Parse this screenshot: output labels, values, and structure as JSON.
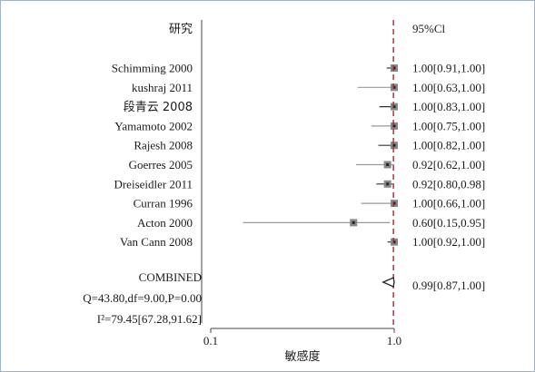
{
  "chart_data": {
    "type": "forest",
    "study_header": "研究",
    "ci_header": "95%Cl",
    "xlabel": "敏感度",
    "x_scale": "log",
    "xlim": [
      0.1,
      1.0
    ],
    "x_ticks": [
      "0.1",
      "1.0"
    ],
    "reference_line": 0.99,
    "studies": [
      {
        "name": "Schimming 2000",
        "est": 1.0,
        "lo": 0.91,
        "hi": 1.0,
        "label": "1.00[0.91,1.00]"
      },
      {
        "name": "kushraj 2011",
        "est": 1.0,
        "lo": 0.63,
        "hi": 1.0,
        "label": "1.00[0.63,1.00]"
      },
      {
        "name": "段青云 2008",
        "est": 1.0,
        "lo": 0.83,
        "hi": 1.0,
        "label": "1.00[0.83,1.00]"
      },
      {
        "name": "Yamamoto 2002",
        "est": 1.0,
        "lo": 0.75,
        "hi": 1.0,
        "label": "1.00[0.75,1.00]"
      },
      {
        "name": "Rajesh 2008",
        "est": 1.0,
        "lo": 0.82,
        "hi": 1.0,
        "label": "1.00[0.82,1.00]"
      },
      {
        "name": "Goerres 2005",
        "est": 0.92,
        "lo": 0.62,
        "hi": 1.0,
        "label": "0.92[0.62,1.00]"
      },
      {
        "name": "Dreiseidler 2011",
        "est": 0.92,
        "lo": 0.8,
        "hi": 0.98,
        "label": "0.92[0.80,0.98]"
      },
      {
        "name": "Curran 1996",
        "est": 1.0,
        "lo": 0.66,
        "hi": 1.0,
        "label": "1.00[0.66,1.00]"
      },
      {
        "name": "Acton 2000",
        "est": 0.6,
        "lo": 0.15,
        "hi": 0.95,
        "label": "0.60[0.15,0.95]"
      },
      {
        "name": "Van Cann 2008",
        "est": 1.0,
        "lo": 0.92,
        "hi": 1.0,
        "label": "1.00[0.92,1.00]"
      }
    ],
    "combined": {
      "name": "COMBINED",
      "est": 0.99,
      "lo": 0.87,
      "hi": 1.0,
      "label": "0.99[0.87,1.00]"
    },
    "heterogeneity": {
      "q_line": "Q=43.80,df=9.00,P=0.00",
      "i2_line": "I²=79.45[67.28,91.62]"
    },
    "colors": {
      "reference_line": "#b22234",
      "ci_line_dark": "#333333",
      "ci_line_light": "#999999",
      "marker_box": "#888888",
      "marker_dot": "#222222"
    }
  }
}
